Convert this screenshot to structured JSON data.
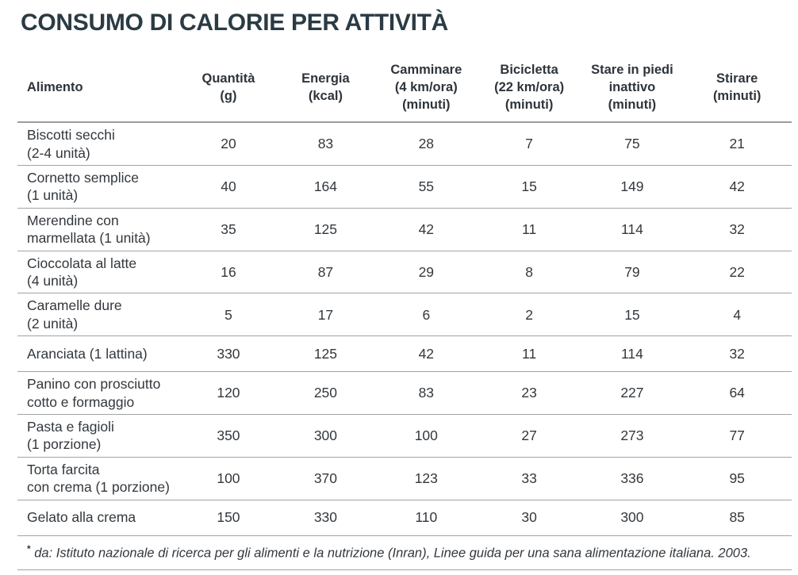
{
  "title": "CONSUMO DI CALORIE PER ATTIVITÀ",
  "colors": {
    "title_text": "#2b3b44",
    "body_text": "#33383d",
    "rule_lines": "#a3a3a3",
    "background": "#ffffff"
  },
  "table": {
    "columns": [
      {
        "label": "Alimento",
        "align": "left"
      },
      {
        "label": "Quantità\n(g)",
        "align": "center"
      },
      {
        "label": "Energia\n(kcal)",
        "align": "center"
      },
      {
        "label": "Camminare\n(4 km/ora)\n(minuti)",
        "align": "center"
      },
      {
        "label": "Bicicletta\n(22 km/ora)\n(minuti)",
        "align": "center"
      },
      {
        "label": "Stare in piedi\ninattivo\n(minuti)",
        "align": "center"
      },
      {
        "label": "Stirare\n(minuti)",
        "align": "center"
      }
    ],
    "rows": [
      {
        "alimento": "Biscotti secchi\n(2-4 unità)",
        "values": [
          "20",
          "83",
          "28",
          "7",
          "75",
          "21"
        ]
      },
      {
        "alimento": "Cornetto semplice\n(1 unità)",
        "values": [
          "40",
          "164",
          "55",
          "15",
          "149",
          "42"
        ]
      },
      {
        "alimento": "Merendine con\nmarmellata (1 unità)",
        "values": [
          "35",
          "125",
          "42",
          "11",
          "114",
          "32"
        ]
      },
      {
        "alimento": "Cioccolata al latte\n(4 unità)",
        "values": [
          "16",
          "87",
          "29",
          "8",
          "79",
          "22"
        ]
      },
      {
        "alimento": "Caramelle dure\n(2 unità)",
        "values": [
          "5",
          "17",
          "6",
          "2",
          "15",
          "4"
        ]
      },
      {
        "alimento": "Aranciata (1 lattina)",
        "values": [
          "330",
          "125",
          "42",
          "11",
          "114",
          "32"
        ]
      },
      {
        "alimento": "Panino con prosciutto\ncotto e formaggio",
        "values": [
          "120",
          "250",
          "83",
          "23",
          "227",
          "64"
        ]
      },
      {
        "alimento": "Pasta e fagioli\n(1 porzione)",
        "values": [
          "350",
          "300",
          "100",
          "27",
          "273",
          "77"
        ]
      },
      {
        "alimento": "Torta farcita\ncon crema (1 porzione)",
        "values": [
          "100",
          "370",
          "123",
          "33",
          "336",
          "95"
        ]
      },
      {
        "alimento": "Gelato alla crema",
        "values": [
          "150",
          "330",
          "110",
          "30",
          "300",
          "85"
        ]
      }
    ]
  },
  "footnote": {
    "marker": "*",
    "text": " da: Istituto nazionale di ricerca per gli alimenti e la nutrizione (Inran), Linee guida per una sana alimentazione italiana. 2003."
  }
}
